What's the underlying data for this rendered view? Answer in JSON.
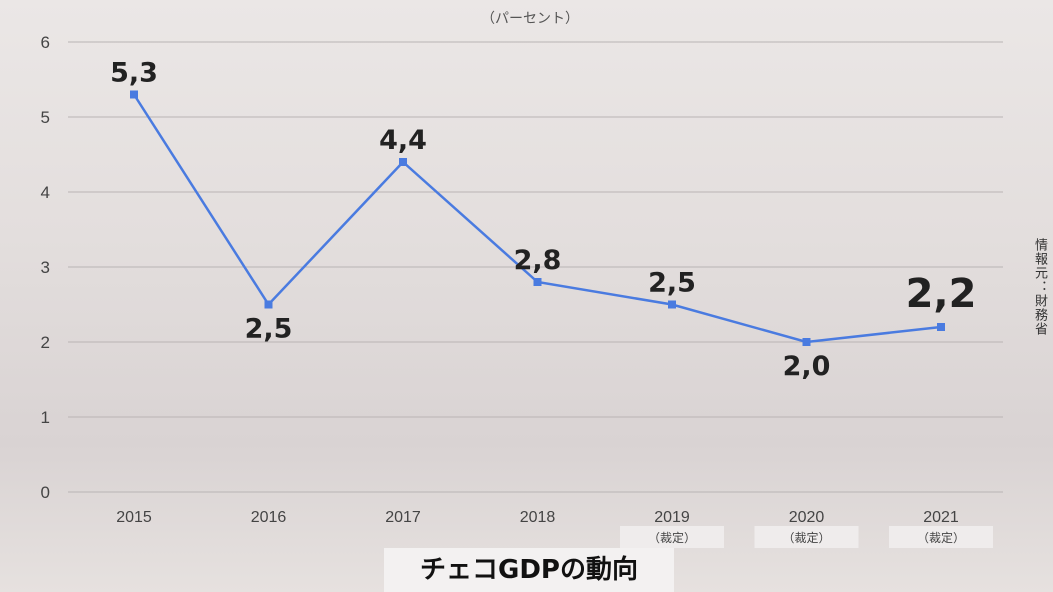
{
  "chart_data": {
    "type": "line",
    "title": "チェコGDPの動向",
    "unit_label": "（パーセント）",
    "source": "情報元：財務省",
    "categories": [
      "2015",
      "2016",
      "2017",
      "2018",
      "2019",
      "2020",
      "2021"
    ],
    "category_notes": [
      "",
      "",
      "",
      "",
      "（裁定）",
      "（裁定）",
      "（裁定）"
    ],
    "values": [
      5.3,
      2.5,
      4.4,
      2.8,
      2.5,
      2.0,
      2.2
    ],
    "data_labels": [
      "5,3",
      "2,5",
      "4,4",
      "2,8",
      "2,5",
      "2,0",
      "2,2"
    ],
    "yticks": [
      "0",
      "1",
      "2",
      "3",
      "4",
      "5",
      "6"
    ],
    "ylim": [
      0,
      6
    ],
    "grid": true,
    "colors": {
      "line": "#4a7be0",
      "grid": "#b9b4b4",
      "label": "#222222"
    }
  }
}
